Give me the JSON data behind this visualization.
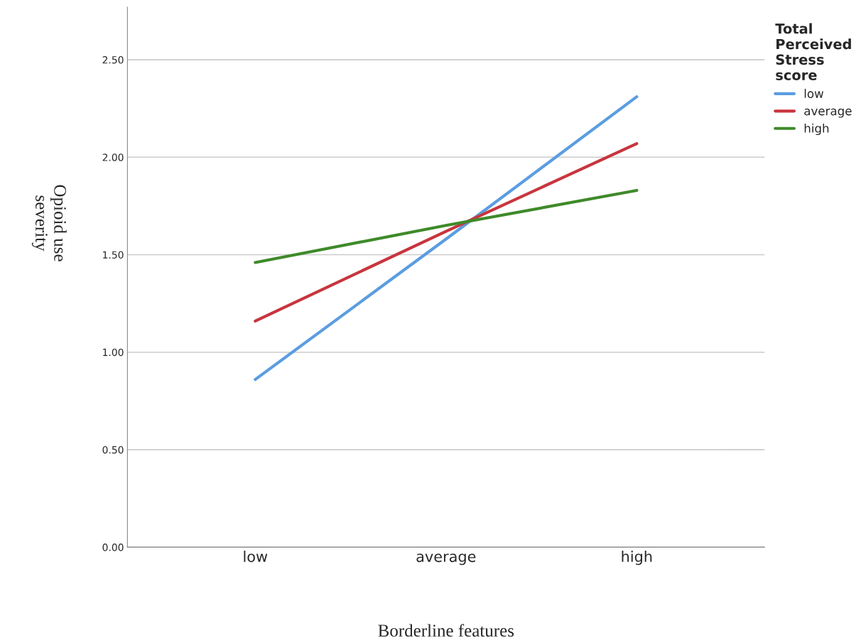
{
  "chart_data": {
    "type": "line",
    "xlabel": "Borderline features",
    "ylabel": "Opioid use\nseverity",
    "legend_title": "Total\nPerceived\nStress\nscore",
    "categories": [
      "low",
      "average",
      "high"
    ],
    "series": [
      {
        "name": "low",
        "color": "#5b9de0",
        "values": [
          0.86,
          1.58,
          2.31
        ]
      },
      {
        "name": "average",
        "color": "#c8353e",
        "values": [
          1.16,
          1.62,
          2.07
        ]
      },
      {
        "name": "high",
        "color": "#3f8a2a",
        "values": [
          1.46,
          1.65,
          1.83
        ]
      }
    ],
    "ylim": [
      0,
      2.77
    ],
    "yticks": [
      {
        "value": 0,
        "label": "0.00"
      },
      {
        "value": 0.5,
        "label": "0.50"
      },
      {
        "value": 1,
        "label": "1.00"
      },
      {
        "value": 1.5,
        "label": "1.50"
      },
      {
        "value": 2,
        "label": "2.00"
      },
      {
        "value": 2.5,
        "label": "2.50"
      }
    ],
    "grid": "y",
    "legend": "top right",
    "marker": "none",
    "line_style": "solid"
  }
}
